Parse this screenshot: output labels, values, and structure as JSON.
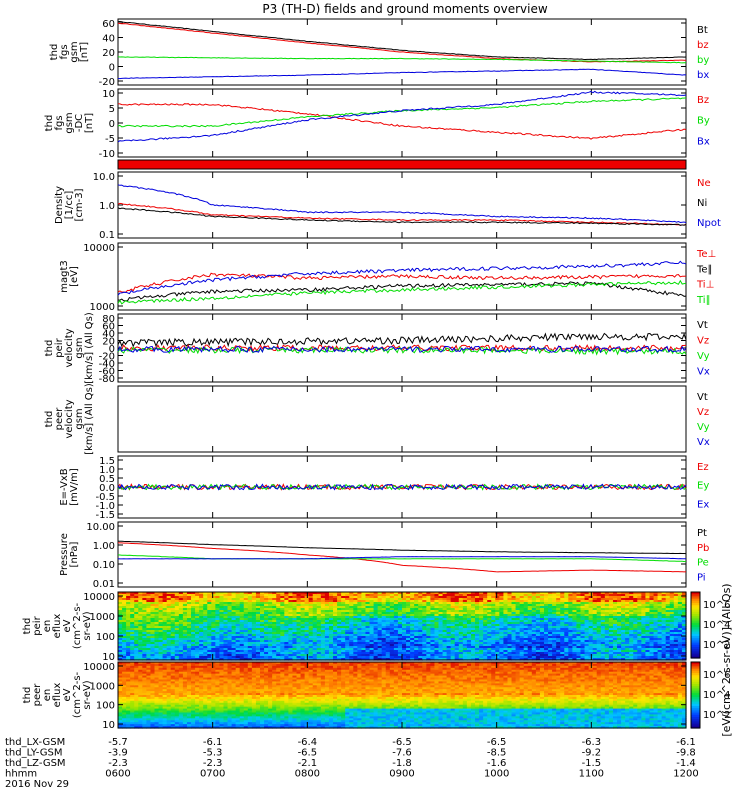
{
  "title": "P3 (TH-D) fields and ground moments overview",
  "colors": {
    "black": "#000000",
    "red": "#ee0000",
    "green": "#00dd00",
    "blue": "#0000dd"
  },
  "panels": [
    {
      "id": "fgs-gsm",
      "ylabel": [
        "thd",
        "fgs",
        "gsm",
        "[nT]"
      ],
      "yticks": [
        "60",
        "40",
        "20",
        "0",
        "-20"
      ],
      "legend": [
        {
          "name": "Bt",
          "color": "#000000"
        },
        {
          "name": "bz",
          "color": "#ee0000"
        },
        {
          "name": "by",
          "color": "#00dd00"
        },
        {
          "name": "bx",
          "color": "#0000dd"
        }
      ]
    },
    {
      "id": "fgs-gsm-dc",
      "ylabel": [
        "thd",
        "fgs",
        "gsm",
        "-DC",
        "[nT]"
      ],
      "yticks": [
        "10",
        "5",
        "0",
        "-5",
        "-10"
      ],
      "legend": [
        {
          "name": "Bz",
          "color": "#ee0000"
        },
        {
          "name": "By",
          "color": "#00dd00"
        },
        {
          "name": "Bx",
          "color": "#0000dd"
        }
      ]
    },
    {
      "id": "flag",
      "ylabel": [],
      "yticks": [],
      "legend": []
    },
    {
      "id": "density",
      "ylabel": [
        "Density",
        "[1/cc]",
        "[cm-3]"
      ],
      "yticks": [
        "10.0",
        "1.0",
        "0.1"
      ],
      "legend": [
        {
          "name": "Ne",
          "color": "#ee0000"
        },
        {
          "name": "Ni",
          "color": "#000000"
        },
        {
          "name": "Npot",
          "color": "#0000dd"
        }
      ]
    },
    {
      "id": "temp",
      "ylabel": [
        "magt3",
        "[eV]"
      ],
      "yticks": [
        "10000",
        "1000"
      ],
      "legend": [
        {
          "name": "Te⊥",
          "color": "#ee0000"
        },
        {
          "name": "Te∥",
          "color": "#000000"
        },
        {
          "name": "Ti⊥",
          "color": "#ee0000"
        },
        {
          "name": "Ti∥",
          "color": "#00dd00"
        }
      ]
    },
    {
      "id": "peir-vel",
      "ylabel": [
        "thd",
        "peir",
        "velocity",
        "gsm",
        "[km/s] (All Qs)"
      ],
      "yticks": [
        "80",
        "60",
        "40",
        "20",
        "0",
        "-20",
        "-40",
        "-60",
        "-80"
      ],
      "legend": [
        {
          "name": "Vt",
          "color": "#000000"
        },
        {
          "name": "Vz",
          "color": "#ee0000"
        },
        {
          "name": "Vy",
          "color": "#00dd00"
        },
        {
          "name": "Vx",
          "color": "#0000dd"
        }
      ]
    },
    {
      "id": "peer-vel",
      "ylabel": [
        "thd",
        "peer",
        "velocity",
        "gsm",
        "[km/s] (All Qs)"
      ],
      "yticks": [],
      "legend": [
        {
          "name": "Vt",
          "color": "#000000"
        },
        {
          "name": "Vz",
          "color": "#ee0000"
        },
        {
          "name": "Vy",
          "color": "#00dd00"
        },
        {
          "name": "Vx",
          "color": "#0000dd"
        }
      ]
    },
    {
      "id": "efield",
      "ylabel": [
        "E=-VxB",
        "[mV/m]"
      ],
      "yticks": [
        "1.5",
        "1.0",
        "0.5",
        "0.0",
        "-0.5",
        "-1.0",
        "-1.5"
      ],
      "legend": [
        {
          "name": "Ez",
          "color": "#ee0000"
        },
        {
          "name": "Ey",
          "color": "#00dd00"
        },
        {
          "name": "Ex",
          "color": "#0000dd"
        }
      ]
    },
    {
      "id": "pressure",
      "ylabel": [
        "Pressure",
        "[nPa]"
      ],
      "yticks": [
        "10.00",
        "1.00",
        "0.10",
        "0.01"
      ],
      "legend": [
        {
          "name": "Pt",
          "color": "#000000"
        },
        {
          "name": "Pb",
          "color": "#ee0000"
        },
        {
          "name": "Pe",
          "color": "#00dd00"
        },
        {
          "name": "Pi",
          "color": "#0000dd"
        }
      ]
    },
    {
      "id": "peir-en",
      "ylabel": [
        "thd",
        "peir",
        "en",
        "eflux",
        "eV",
        "(cm^2-s-",
        "sr-eV)"
      ],
      "yticks": [
        "10000",
        "1000",
        "100",
        "10"
      ],
      "legend": []
    },
    {
      "id": "peer-en",
      "ylabel": [
        "thd",
        "peer",
        "en",
        "eflux",
        "eV",
        "(cm^2-s-",
        "sr-eV)"
      ],
      "yticks": [
        "10000",
        "1000",
        "100",
        "10"
      ],
      "legend": []
    }
  ],
  "colorbar": {
    "label": "[eV/(cm^2-s-sr-eV)] (All Qs)",
    "ticks1": [
      "10^6",
      "10^4",
      "10^2"
    ],
    "ticks2": [
      "10^6",
      "10^4",
      "10^2"
    ]
  },
  "x_axis": {
    "rows": [
      {
        "label": "thd_LX-GSM",
        "values": [
          "-5.7",
          "-6.1",
          "-6.4",
          "-6.5",
          "-6.5",
          "-6.3",
          "-6.1"
        ]
      },
      {
        "label": "thd_LY-GSM",
        "values": [
          "-3.9",
          "-5.3",
          "-6.5",
          "-7.6",
          "-8.5",
          "-9.2",
          "-9.8"
        ]
      },
      {
        "label": "thd_LZ-GSM",
        "values": [
          "-2.3",
          "-2.3",
          "-2.1",
          "-1.8",
          "-1.6",
          "-1.5",
          "-1.4"
        ]
      },
      {
        "label": "hhmm",
        "values": [
          "0600",
          "0700",
          "0800",
          "0900",
          "1000",
          "1100",
          "1200"
        ]
      }
    ],
    "date": "2016 Nov 29"
  },
  "chart_data": {
    "type": "line",
    "title": "P3 (TH-D) fields and ground moments overview",
    "x": [
      "0600",
      "0700",
      "0800",
      "0900",
      "1000",
      "1100",
      "1200"
    ],
    "xlabel": "hhmm",
    "panels": [
      {
        "name": "thd fgs gsm [nT]",
        "ylim": [
          -20,
          60
        ],
        "series": [
          {
            "name": "Bt",
            "values": [
              57,
              45,
              33,
              22,
              14,
              11,
              14
            ]
          },
          {
            "name": "bz",
            "values": [
              55,
              43,
              31,
              20,
              12,
              8,
              10
            ]
          },
          {
            "name": "by",
            "values": [
              14,
              13,
              12,
              12,
              11,
              9,
              7
            ]
          },
          {
            "name": "bx",
            "values": [
              -12,
              -10,
              -8,
              -5,
              -3,
              -1,
              -8
            ]
          }
        ]
      },
      {
        "name": "thd fgs gsm -DC [nT]",
        "ylim": [
          -12,
          10
        ],
        "series": [
          {
            "name": "Bz",
            "values": [
              5,
              5,
              2,
              -2,
              -4,
              -6,
              -3
            ]
          },
          {
            "name": "By",
            "values": [
              -2,
              -2,
              1,
              3,
              4,
              6,
              7
            ]
          },
          {
            "name": "Bx",
            "values": [
              -7,
              -5,
              0,
              3,
              5,
              9,
              8
            ]
          }
        ]
      },
      {
        "name": "Density [1/cc]",
        "ylim": [
          0.1,
          10
        ],
        "scale": "log",
        "series": [
          {
            "name": "Ne",
            "values": [
              1.1,
              0.5,
              0.4,
              0.35,
              0.35,
              0.3,
              0.25
            ]
          },
          {
            "name": "Ni",
            "values": [
              0.8,
              0.45,
              0.35,
              0.3,
              0.3,
              0.28,
              0.25
            ]
          },
          {
            "name": "Npot",
            "values": [
              4,
              1.0,
              0.6,
              0.6,
              0.45,
              0.4,
              0.3
            ]
          }
        ]
      },
      {
        "name": "magt3 [eV]",
        "ylim": [
          1000,
          10000
        ],
        "scale": "log",
        "series": [
          {
            "name": "Te⊥",
            "values": [
              1800,
              3400,
              3000,
              3200,
              3000,
              3100,
              3300
            ]
          },
          {
            "name": "Te∥",
            "values": [
              1400,
              1900,
              2000,
              2300,
              2400,
              2500,
              1600
            ]
          },
          {
            "name": "Ti⊥",
            "values": [
              1700,
              2800,
              3500,
              3900,
              4200,
              4500,
              5100
            ]
          },
          {
            "name": "Ti∥",
            "values": [
              1300,
              1500,
              1800,
              2000,
              2200,
              2400,
              2600
            ]
          }
        ]
      },
      {
        "name": "thd peir velocity gsm [km/s]",
        "ylim": [
          -80,
          80
        ],
        "series": [
          {
            "name": "Vt",
            "values": [
              12,
              14,
              16,
              18,
              22,
              28,
              25
            ]
          },
          {
            "name": "Vz",
            "values": [
              0,
              0,
              0,
              0,
              0,
              0,
              0
            ]
          },
          {
            "name": "Vy",
            "values": [
              -5,
              -5,
              -5,
              -5,
              -5,
              -8,
              -8
            ]
          },
          {
            "name": "Vx",
            "values": [
              -3,
              -3,
              -3,
              -3,
              -3,
              -3,
              -3
            ]
          }
        ]
      },
      {
        "name": "E=-VxB [mV/m]",
        "ylim": [
          -1.5,
          1.5
        ],
        "series": [
          {
            "name": "Ez",
            "values": [
              0,
              0,
              0,
              0,
              0,
              0,
              0
            ]
          },
          {
            "name": "Ey",
            "values": [
              0,
              0,
              0,
              0,
              0,
              0,
              0
            ]
          },
          {
            "name": "Ex",
            "values": [
              0,
              0,
              0,
              0,
              0,
              0,
              0
            ]
          }
        ]
      },
      {
        "name": "Pressure [nPa]",
        "ylim": [
          0.01,
          10
        ],
        "scale": "log",
        "series": [
          {
            "name": "Pt",
            "values": [
              1.3,
              0.9,
              0.65,
              0.5,
              0.42,
              0.38,
              0.35
            ]
          },
          {
            "name": "Pb",
            "values": [
              1.1,
              0.6,
              0.3,
              0.1,
              0.05,
              0.06,
              0.05
            ]
          },
          {
            "name": "Pe",
            "values": [
              0.3,
              0.2,
              0.2,
              0.2,
              0.2,
              0.2,
              0.15
            ]
          },
          {
            "name": "Pi",
            "values": [
              0.2,
              0.2,
              0.2,
              0.25,
              0.25,
              0.25,
              0.2
            ]
          }
        ]
      }
    ]
  }
}
